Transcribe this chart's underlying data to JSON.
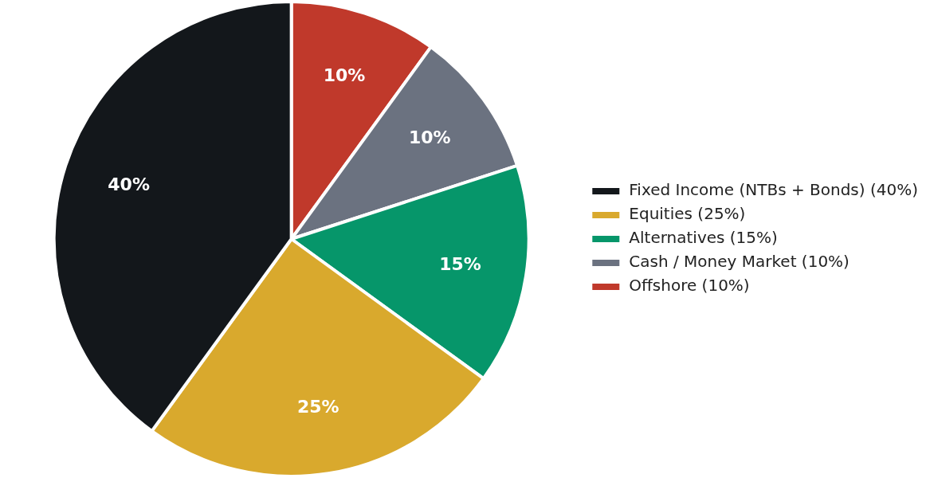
{
  "chart_data": {
    "type": "pie",
    "categories": [
      "Fixed Income (NTBs + Bonds) (40%)",
      "Equities (25%)",
      "Alternatives (15%)",
      "Cash / Money Market (10%)",
      "Offshore (10%)"
    ],
    "values": [
      40,
      25,
      15,
      10,
      10
    ],
    "colors": [
      "#13171b",
      "#d9a92d",
      "#06966a",
      "#6b7280",
      "#c0392b"
    ],
    "value_labels": [
      "40%",
      "25%",
      "15%",
      "10%",
      "10%"
    ],
    "legend": "right"
  }
}
